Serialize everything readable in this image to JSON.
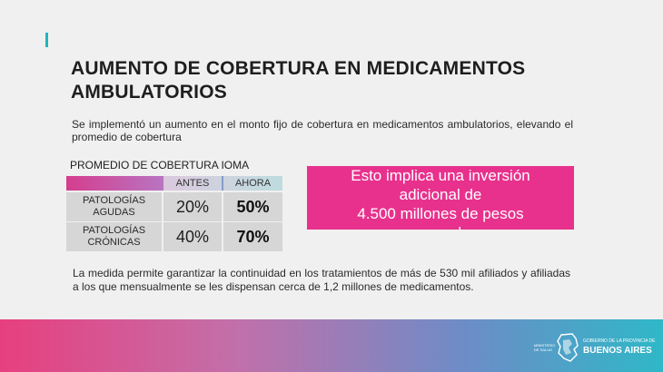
{
  "slide": {
    "title": "AUMENTO DE COBERTURA EN MEDICAMENTOS AMBULATORIOS",
    "intro": "Se implementó un aumento en el monto fijo de cobertura en medicamentos ambulatorios, elevando el promedio de cobertura",
    "table_title": "PROMEDIO DE COBERTURA IOMA",
    "table": {
      "columns": [
        "ANTES",
        "AHORA"
      ],
      "rows": [
        {
          "label": "PATOLOGÍAS AGUDAS",
          "antes": "20%",
          "ahora": "50%"
        },
        {
          "label": "PATOLOGÍAS CRÓNICAS",
          "antes": "40%",
          "ahora": "70%"
        }
      ]
    },
    "highlight": {
      "line1": "Esto implica una inversión",
      "line2": "adicional de",
      "line3": "4.500 millones de pesos",
      "line4": "mensuales"
    },
    "footer_text": "La medida permite garantizar la continuidad en los tratamientos de más de 530 mil afiliados y afiliadas a los que mensualmente se les dispensan cerca de 1,2 millones de medicamentos."
  },
  "branding": {
    "ministry": "MINISTERIO DE SALUD",
    "government": "GOBIERNO DE LA PROVINCIA DE",
    "province": "BUENOS AIRES"
  },
  "colors": {
    "accent_pink": "#e8318d",
    "accent_teal": "#1fb6bd",
    "band_gradient": [
      "#e73f7e",
      "#2fb8c7"
    ]
  }
}
